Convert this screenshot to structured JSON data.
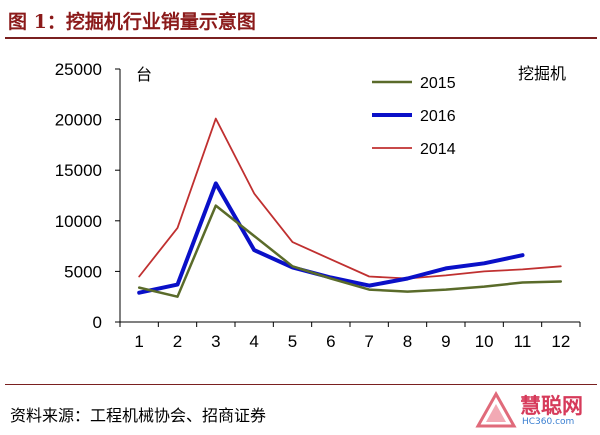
{
  "header": {
    "title": "图 1：挖掘机行业销量示意图"
  },
  "footer": {
    "source": "资料来源：工程机械协会、招商证券"
  },
  "watermark": {
    "main": "慧聪网",
    "sub": "HC360.com"
  },
  "chart_data": {
    "type": "line",
    "title": "挖掘机",
    "ylabel": "台",
    "xlabel": "",
    "x": [
      1,
      2,
      3,
      4,
      5,
      6,
      7,
      8,
      9,
      10,
      11,
      12
    ],
    "ylim": [
      0,
      25000
    ],
    "yticks": [
      0,
      5000,
      10000,
      15000,
      20000,
      25000
    ],
    "grid": false,
    "legend_position": "top-center",
    "series": [
      {
        "name": "2015",
        "color": "#5a6b2a",
        "width": 2.5,
        "values": [
          3400,
          2500,
          11500,
          8500,
          5500,
          4300,
          3200,
          3000,
          3200,
          3500,
          3900,
          4000
        ]
      },
      {
        "name": "2016",
        "color": "#0a10c8",
        "width": 4,
        "values": [
          2900,
          3700,
          13700,
          7100,
          5400,
          4400,
          3600,
          4300,
          5300,
          5800,
          6600,
          null
        ]
      },
      {
        "name": "2014",
        "color": "#c03030",
        "width": 1.8,
        "values": [
          4500,
          9300,
          20100,
          12700,
          7900,
          6200,
          4500,
          4300,
          4600,
          5000,
          5200,
          5500
        ]
      }
    ]
  }
}
